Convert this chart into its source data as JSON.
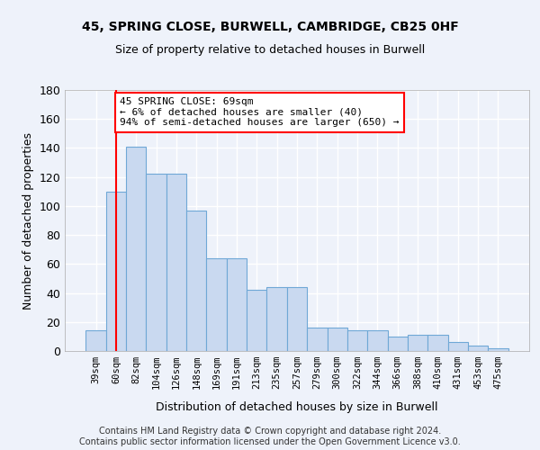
{
  "title1": "45, SPRING CLOSE, BURWELL, CAMBRIDGE, CB25 0HF",
  "title2": "Size of property relative to detached houses in Burwell",
  "xlabel": "Distribution of detached houses by size in Burwell",
  "ylabel": "Number of detached properties",
  "categories": [
    "39sqm",
    "60sqm",
    "82sqm",
    "104sqm",
    "126sqm",
    "148sqm",
    "169sqm",
    "191sqm",
    "213sqm",
    "235sqm",
    "257sqm",
    "279sqm",
    "300sqm",
    "322sqm",
    "344sqm",
    "366sqm",
    "388sqm",
    "410sqm",
    "431sqm",
    "453sqm",
    "475sqm"
  ],
  "bar_values": [
    14,
    110,
    141,
    122,
    122,
    97,
    64,
    64,
    42,
    44,
    44,
    16,
    16,
    14,
    14,
    10,
    11,
    11,
    6,
    4,
    2
  ],
  "bar_color": "#c9d9f0",
  "bar_edgecolor": "#6fa8d6",
  "vline_x": 1,
  "vline_color": "red",
  "annotation_text": "45 SPRING CLOSE: 69sqm\n← 6% of detached houses are smaller (40)\n94% of semi-detached houses are larger (650) →",
  "annotation_box_color": "white",
  "annotation_box_edgecolor": "red",
  "ylim": [
    0,
    180
  ],
  "yticks": [
    0,
    20,
    40,
    60,
    80,
    100,
    120,
    140,
    160,
    180
  ],
  "footer": "Contains HM Land Registry data © Crown copyright and database right 2024.\nContains public sector information licensed under the Open Government Licence v3.0.",
  "background_color": "#eef2fa",
  "grid_color": "white"
}
